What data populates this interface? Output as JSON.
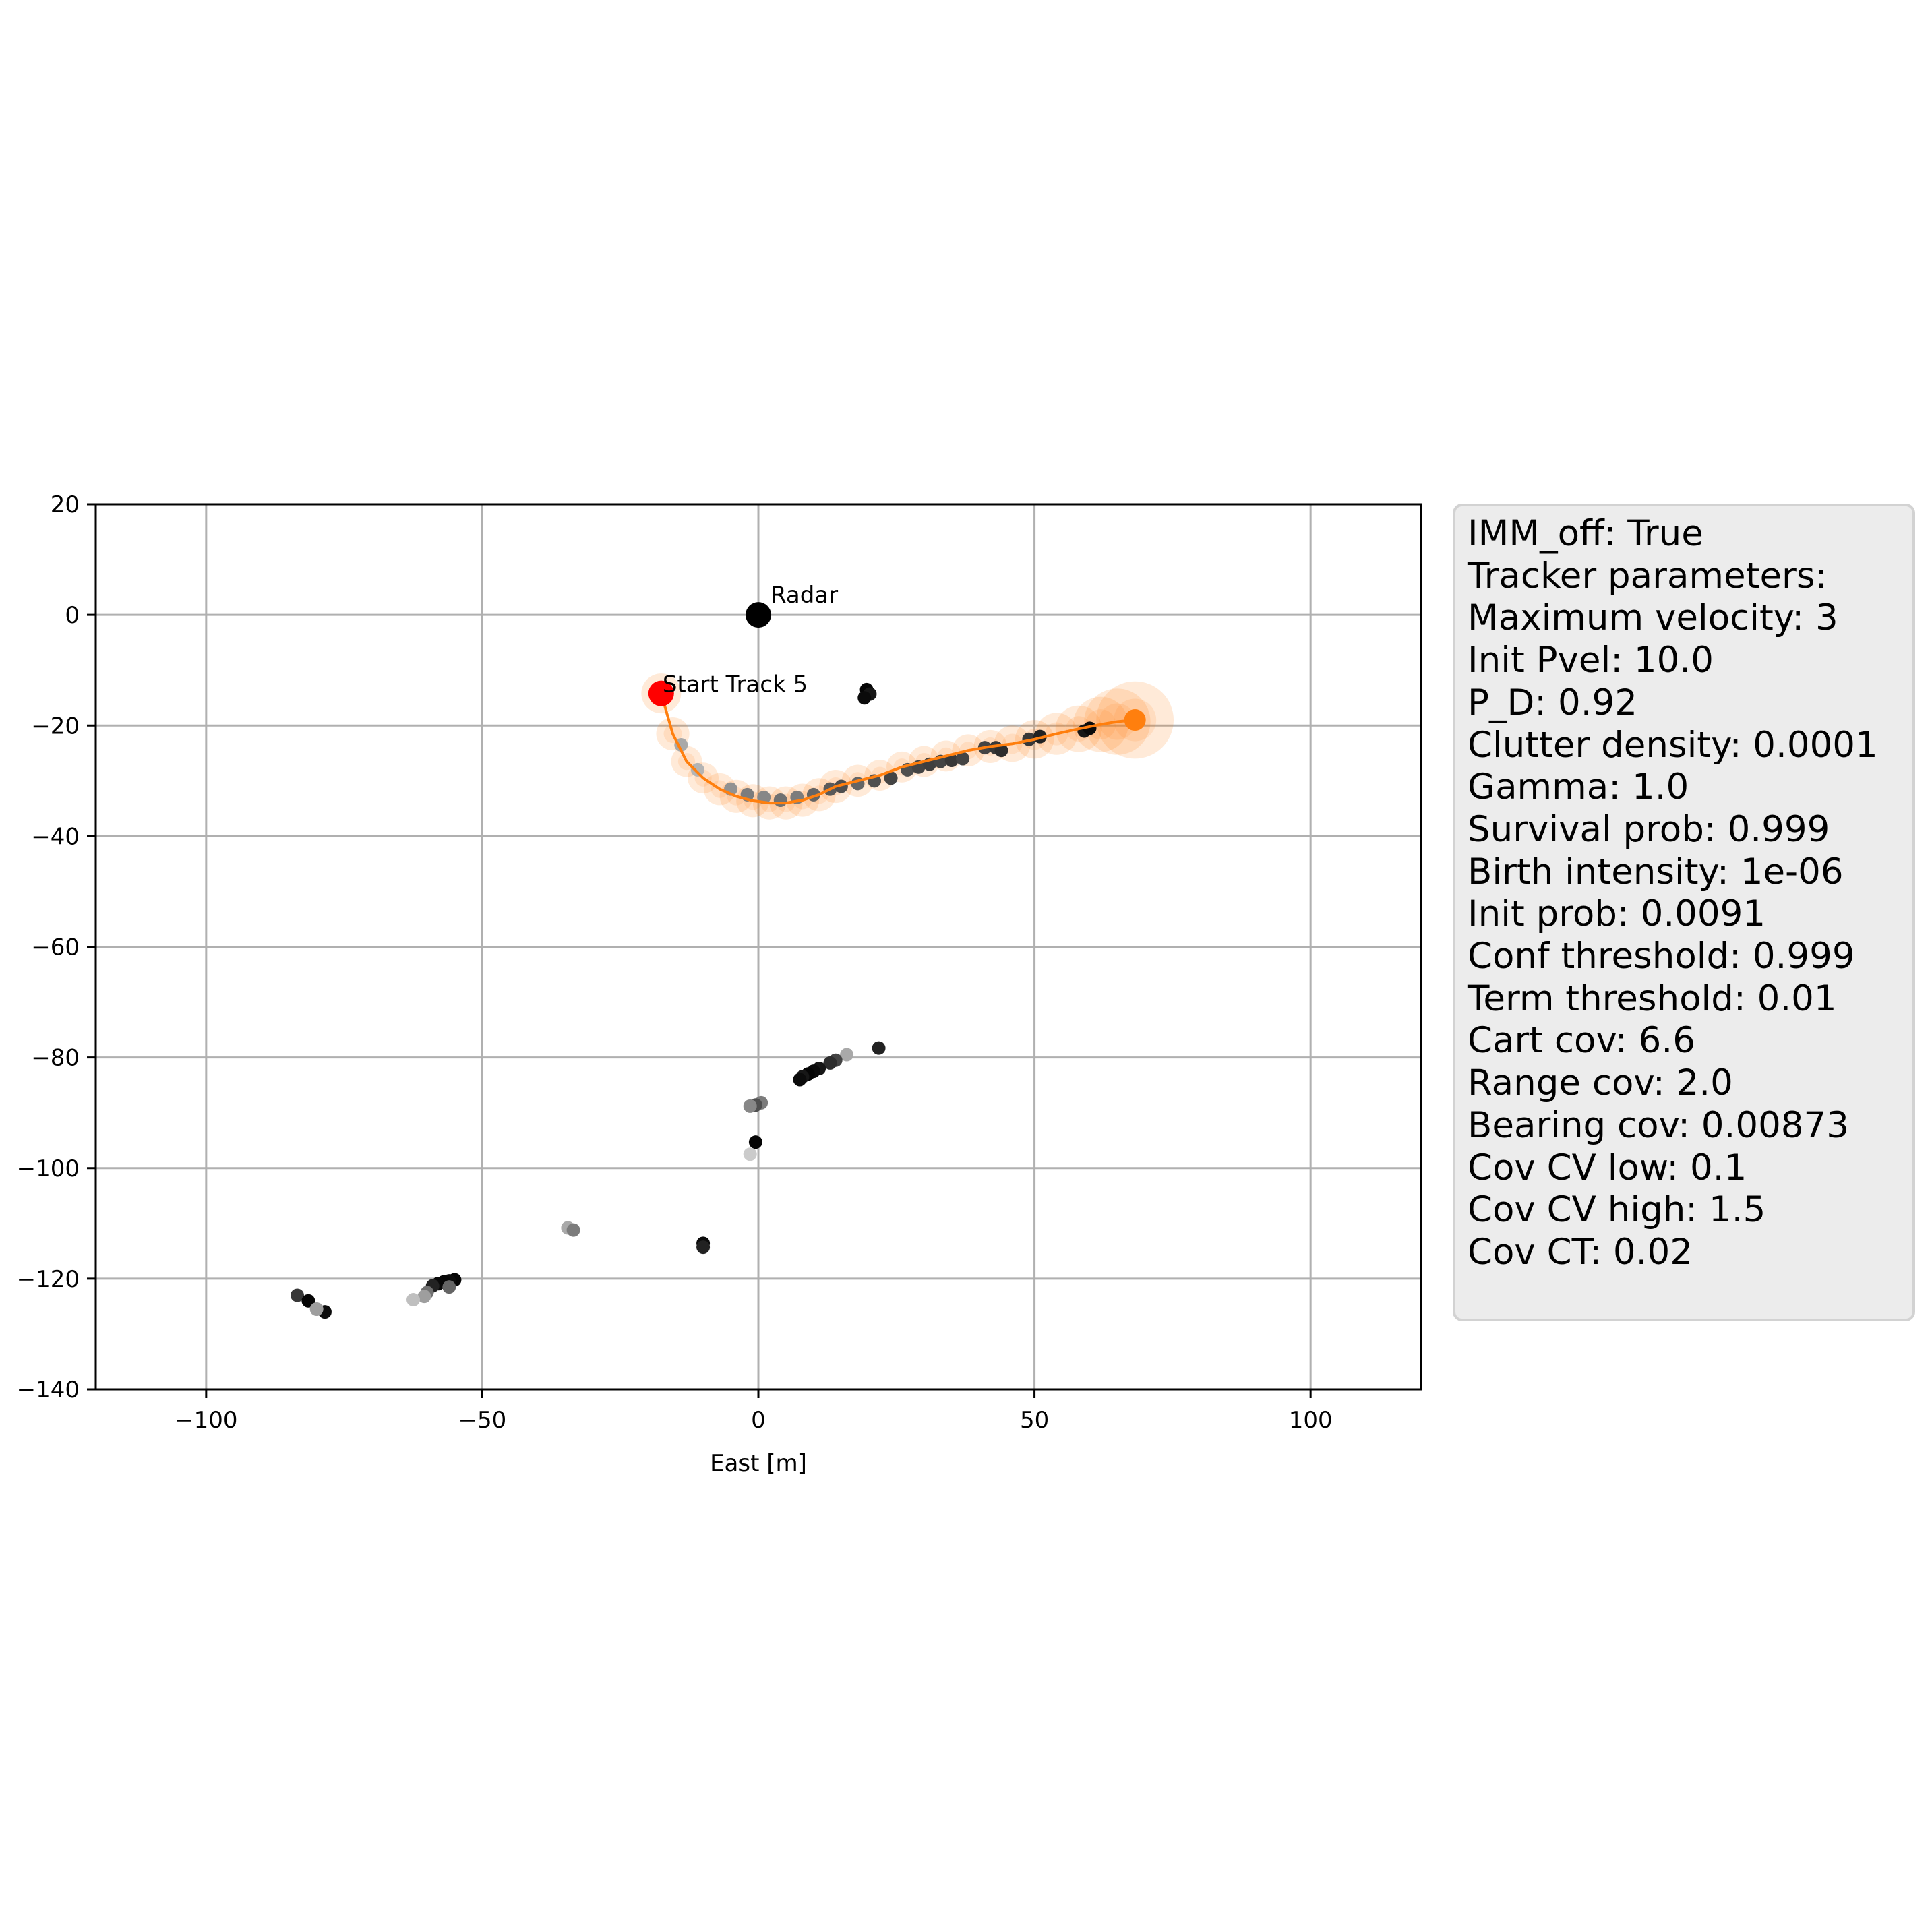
{
  "chart_data": {
    "type": "scatter",
    "xlabel": "East [m]",
    "ylabel": "",
    "xlim": [
      -120,
      120
    ],
    "ylim": [
      -140,
      20
    ],
    "xticks": [
      -100,
      -50,
      0,
      50,
      100
    ],
    "yticks": [
      20,
      0,
      -20,
      -40,
      -60,
      -80,
      -100,
      -120,
      -140
    ],
    "xtick_labels": [
      "−100",
      "−50",
      "0",
      "50",
      "100"
    ],
    "ytick_labels": [
      "20",
      "0",
      "−20",
      "−40",
      "−60",
      "−80",
      "−100",
      "−120",
      "−140"
    ],
    "grid": true,
    "radar": {
      "label": "Radar",
      "x": 0,
      "y": 0,
      "color": "#000000"
    },
    "track": {
      "start_label": "Start Track 5",
      "color": "#ff7f0e",
      "start_color": "#ff0000",
      "x": [
        -17.6,
        -15.5,
        -13,
        -10,
        -7,
        -4,
        -1,
        2,
        5,
        8,
        11,
        14,
        18,
        22,
        26,
        30,
        34,
        38,
        42,
        46,
        50,
        54,
        58,
        62,
        65,
        68.2
      ],
      "y": [
        -14.2,
        -21.5,
        -26.5,
        -29.5,
        -31.5,
        -32.8,
        -33.6,
        -34,
        -34,
        -33.5,
        -32.5,
        -31,
        -30,
        -29,
        -27.5,
        -26.5,
        -25.5,
        -24.5,
        -23.8,
        -23.3,
        -22.5,
        -21.5,
        -20.6,
        -19.8,
        -19.3,
        -19
      ],
      "uncertainty_radius_m": [
        3.6,
        3,
        2.8,
        2.8,
        2.9,
        3,
        3,
        3,
        3,
        3,
        3,
        3,
        2.9,
        2.8,
        2.8,
        2.8,
        2.8,
        2.9,
        3,
        3.3,
        3.5,
        3.8,
        4.2,
        5,
        6,
        7
      ]
    },
    "measurements": [
      {
        "x": 19.6,
        "y": -13.5,
        "shade": 0.02
      },
      {
        "x": 20.2,
        "y": -14.3,
        "shade": 0.1
      },
      {
        "x": 19.2,
        "y": -15,
        "shade": 0.05
      },
      {
        "x": -14,
        "y": -23.5,
        "shade": 0.75
      },
      {
        "x": -11,
        "y": -28,
        "shade": 0.8
      },
      {
        "x": -5,
        "y": -31.5,
        "shade": 0.65
      },
      {
        "x": -2,
        "y": -32.5,
        "shade": 0.55
      },
      {
        "x": 1,
        "y": -33,
        "shade": 0.6
      },
      {
        "x": 4,
        "y": -33.5,
        "shade": 0.5
      },
      {
        "x": 7,
        "y": -33,
        "shade": 0.55
      },
      {
        "x": 10,
        "y": -32.5,
        "shade": 0.45
      },
      {
        "x": 13,
        "y": -31.5,
        "shade": 0.4
      },
      {
        "x": 15,
        "y": -31,
        "shade": 0.35
      },
      {
        "x": 18,
        "y": -30.5,
        "shade": 0.45
      },
      {
        "x": 21,
        "y": -30,
        "shade": 0.35
      },
      {
        "x": 24,
        "y": -29.5,
        "shade": 0.3
      },
      {
        "x": 27,
        "y": -28,
        "shade": 0.35
      },
      {
        "x": 29,
        "y": -27.5,
        "shade": 0.3
      },
      {
        "x": 31,
        "y": -27,
        "shade": 0.28
      },
      {
        "x": 33,
        "y": -26.5,
        "shade": 0.3
      },
      {
        "x": 35,
        "y": -26.3,
        "shade": 0.25
      },
      {
        "x": 37,
        "y": -26,
        "shade": 0.3
      },
      {
        "x": 41,
        "y": -24,
        "shade": 0.3
      },
      {
        "x": 43,
        "y": -24,
        "shade": 0.25
      },
      {
        "x": 44,
        "y": -24.5,
        "shade": 0.2
      },
      {
        "x": 49,
        "y": -22.5,
        "shade": 0.25
      },
      {
        "x": 51,
        "y": -22,
        "shade": 0.15
      },
      {
        "x": 59,
        "y": -21,
        "shade": 0.1
      },
      {
        "x": 60,
        "y": -20.5,
        "shade": 0.05
      },
      {
        "x": 21.8,
        "y": -78.3,
        "shade": 0.15
      },
      {
        "x": 16,
        "y": -79.5,
        "shade": 0.75
      },
      {
        "x": 14,
        "y": -80.5,
        "shade": 0.3
      },
      {
        "x": 13,
        "y": -81,
        "shade": 0.2
      },
      {
        "x": 11,
        "y": -82,
        "shade": 0.1
      },
      {
        "x": 10,
        "y": -82.5,
        "shade": 0.05
      },
      {
        "x": 9,
        "y": -83,
        "shade": 0.02
      },
      {
        "x": 8,
        "y": -83.5,
        "shade": 0.1
      },
      {
        "x": 7.5,
        "y": -84,
        "shade": 0.05
      },
      {
        "x": 0.5,
        "y": -88.2,
        "shade": 0.55
      },
      {
        "x": -0.5,
        "y": -88.6,
        "shade": 0.35
      },
      {
        "x": -1.5,
        "y": -88.8,
        "shade": 0.6
      },
      {
        "x": -0.5,
        "y": -95.3,
        "shade": 0.02
      },
      {
        "x": -1.5,
        "y": -97.5,
        "shade": 0.9
      },
      {
        "x": -34.5,
        "y": -110.8,
        "shade": 0.75
      },
      {
        "x": -33.5,
        "y": -111.2,
        "shade": 0.55
      },
      {
        "x": -10,
        "y": -113.6,
        "shade": 0.05
      },
      {
        "x": -10,
        "y": -114.3,
        "shade": 0.15
      },
      {
        "x": -55,
        "y": -120.2,
        "shade": 0.02
      },
      {
        "x": -56,
        "y": -120.4,
        "shade": 0.05
      },
      {
        "x": -57,
        "y": -120.6,
        "shade": 0.03
      },
      {
        "x": -58,
        "y": -120.9,
        "shade": 0.04
      },
      {
        "x": -59,
        "y": -121.3,
        "shade": 0.15
      },
      {
        "x": -56,
        "y": -121.5,
        "shade": 0.45
      },
      {
        "x": -60,
        "y": -122.5,
        "shade": 0.5
      },
      {
        "x": -60.5,
        "y": -123.2,
        "shade": 0.7
      },
      {
        "x": -62.5,
        "y": -123.8,
        "shade": 0.85
      },
      {
        "x": -83.5,
        "y": -123,
        "shade": 0.25
      },
      {
        "x": -81.5,
        "y": -124,
        "shade": 0.02
      },
      {
        "x": -78.5,
        "y": -126,
        "shade": 0.05
      },
      {
        "x": -80,
        "y": -125.5,
        "shade": 0.7
      }
    ]
  },
  "parameters": {
    "lines": [
      "IMM_off: True",
      "Tracker parameters:",
      "Maximum velocity: 3",
      "Init Pvel: 10.0",
      "P_D: 0.92",
      "Clutter density: 0.0001",
      "Gamma: 1.0",
      "Survival prob: 0.999",
      "Birth intensity: 1e-06",
      "Init prob: 0.0091",
      "Conf threshold: 0.999",
      "Term threshold: 0.01",
      "Cart cov: 6.6",
      "Range cov: 2.0",
      "Bearing cov: 0.00873",
      "Cov CV low: 0.1",
      "Cov CV high: 1.5",
      "Cov CT: 0.02"
    ]
  }
}
